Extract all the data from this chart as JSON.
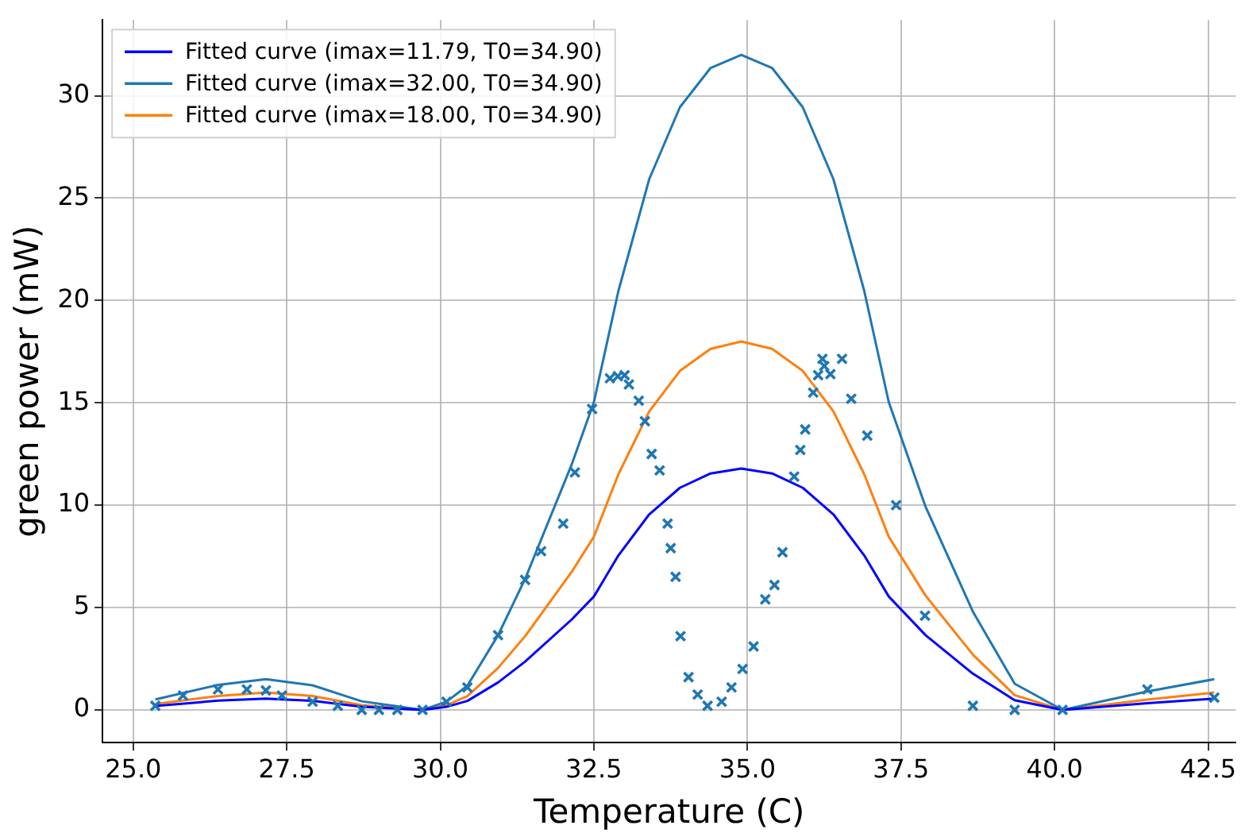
{
  "chart_data": {
    "type": "line",
    "xlabel": "Temperature (C)",
    "ylabel": "green power (mW)",
    "x": [
      25.36,
      26.38,
      27.16,
      27.92,
      28.72,
      29.71,
      30.1,
      30.44,
      30.94,
      31.38,
      32.14,
      32.5,
      32.9,
      33.4,
      33.9,
      34.4,
      34.9,
      35.4,
      35.9,
      36.4,
      36.9,
      37.3,
      37.9,
      38.67,
      39.35,
      40.13,
      41.51,
      42.6
    ],
    "series": [
      {
        "name": "Fitted curve (imax=11.79, T0=34.90)",
        "color": "#0000ff",
        "values": [
          0.19,
          0.45,
          0.55,
          0.44,
          0.15,
          0,
          0.15,
          0.44,
          1.34,
          2.36,
          4.42,
          5.54,
          7.55,
          9.55,
          10.85,
          11.55,
          11.79,
          11.55,
          10.85,
          9.55,
          7.55,
          5.54,
          3.65,
          1.77,
          0.47,
          0,
          0.33,
          0.55
        ]
      },
      {
        "name": "Fitted curve (imax=32.00, T0=34.90)",
        "color": "#1f77b4",
        "values": [
          0.51,
          1.22,
          1.5,
          1.2,
          0.42,
          0,
          0.4,
          1.18,
          3.65,
          6.4,
          12,
          15.04,
          20.48,
          25.92,
          29.44,
          31.36,
          32,
          31.36,
          29.44,
          25.92,
          20.48,
          15.04,
          9.92,
          4.8,
          1.28,
          0,
          0.9,
          1.5
        ]
      },
      {
        "name": "Fitted curve (imax=18.00, T0=34.90)",
        "color": "#ff7f0e",
        "values": [
          0.29,
          0.68,
          0.85,
          0.68,
          0.23,
          0,
          0.23,
          0.67,
          2.05,
          3.6,
          6.75,
          8.46,
          11.52,
          14.58,
          16.56,
          17.64,
          18,
          17.64,
          16.56,
          14.58,
          11.52,
          8.46,
          5.58,
          2.7,
          0.72,
          0,
          0.5,
          0.85
        ]
      },
      {
        "type": "scatter",
        "color": "#1f77b4",
        "marker": "cross",
        "x": [
          25.36,
          25.81,
          26.38,
          26.85,
          27.16,
          27.42,
          27.92,
          28.33,
          28.72,
          29.0,
          29.3,
          29.71,
          30.1,
          30.44,
          30.94,
          31.38,
          31.64,
          32.0,
          32.19,
          32.47,
          32.76,
          32.89,
          33.0,
          33.07,
          33.23,
          33.33,
          33.44,
          33.57,
          33.7,
          33.75,
          33.83,
          33.91,
          34.04,
          34.19,
          34.35,
          34.58,
          34.74,
          34.92,
          35.1,
          35.29,
          35.44,
          35.57,
          35.76,
          35.86,
          35.94,
          36.07,
          36.15,
          36.22,
          36.25,
          36.35,
          36.54,
          36.69,
          36.95,
          37.42,
          37.89,
          38.67,
          39.35,
          40.13,
          41.51,
          42.6
        ],
        "values": [
          0.2,
          0.7,
          1.0,
          1.0,
          0.95,
          0.7,
          0.4,
          0.2,
          0,
          0,
          0,
          0,
          0.4,
          1.1,
          3.65,
          6.35,
          7.75,
          9.1,
          11.6,
          14.7,
          16.2,
          16.3,
          16.35,
          15.9,
          15.1,
          14.1,
          12.5,
          11.7,
          9.1,
          7.9,
          6.5,
          3.6,
          1.6,
          0.75,
          0.2,
          0.4,
          1.1,
          2.0,
          3.1,
          5.4,
          6.1,
          7.7,
          11.4,
          12.7,
          13.7,
          15.5,
          16.35,
          17.15,
          16.8,
          16.4,
          17.15,
          15.2,
          13.4,
          10.0,
          4.6,
          0.2,
          0,
          0,
          1.0,
          0.6
        ]
      }
    ],
    "xlim": [
      24.5,
      42.95
    ],
    "xticks": [
      {
        "value": 25,
        "label": "25.0"
      },
      {
        "value": 27.5,
        "label": "27.5"
      },
      {
        "value": 30,
        "label": "30.0"
      },
      {
        "value": 32.5,
        "label": "32.5"
      },
      {
        "value": 35,
        "label": "35.0"
      },
      {
        "value": 37.5,
        "label": "37.5"
      },
      {
        "value": 40,
        "label": "40.0"
      },
      {
        "value": 42.5,
        "label": "42.5"
      }
    ],
    "ylim": [
      -1.6,
      33.7
    ],
    "yticks": [
      0,
      5,
      10,
      15,
      20,
      25,
      30
    ],
    "grid": true,
    "legend": "top left",
    "line_style": "solid"
  }
}
